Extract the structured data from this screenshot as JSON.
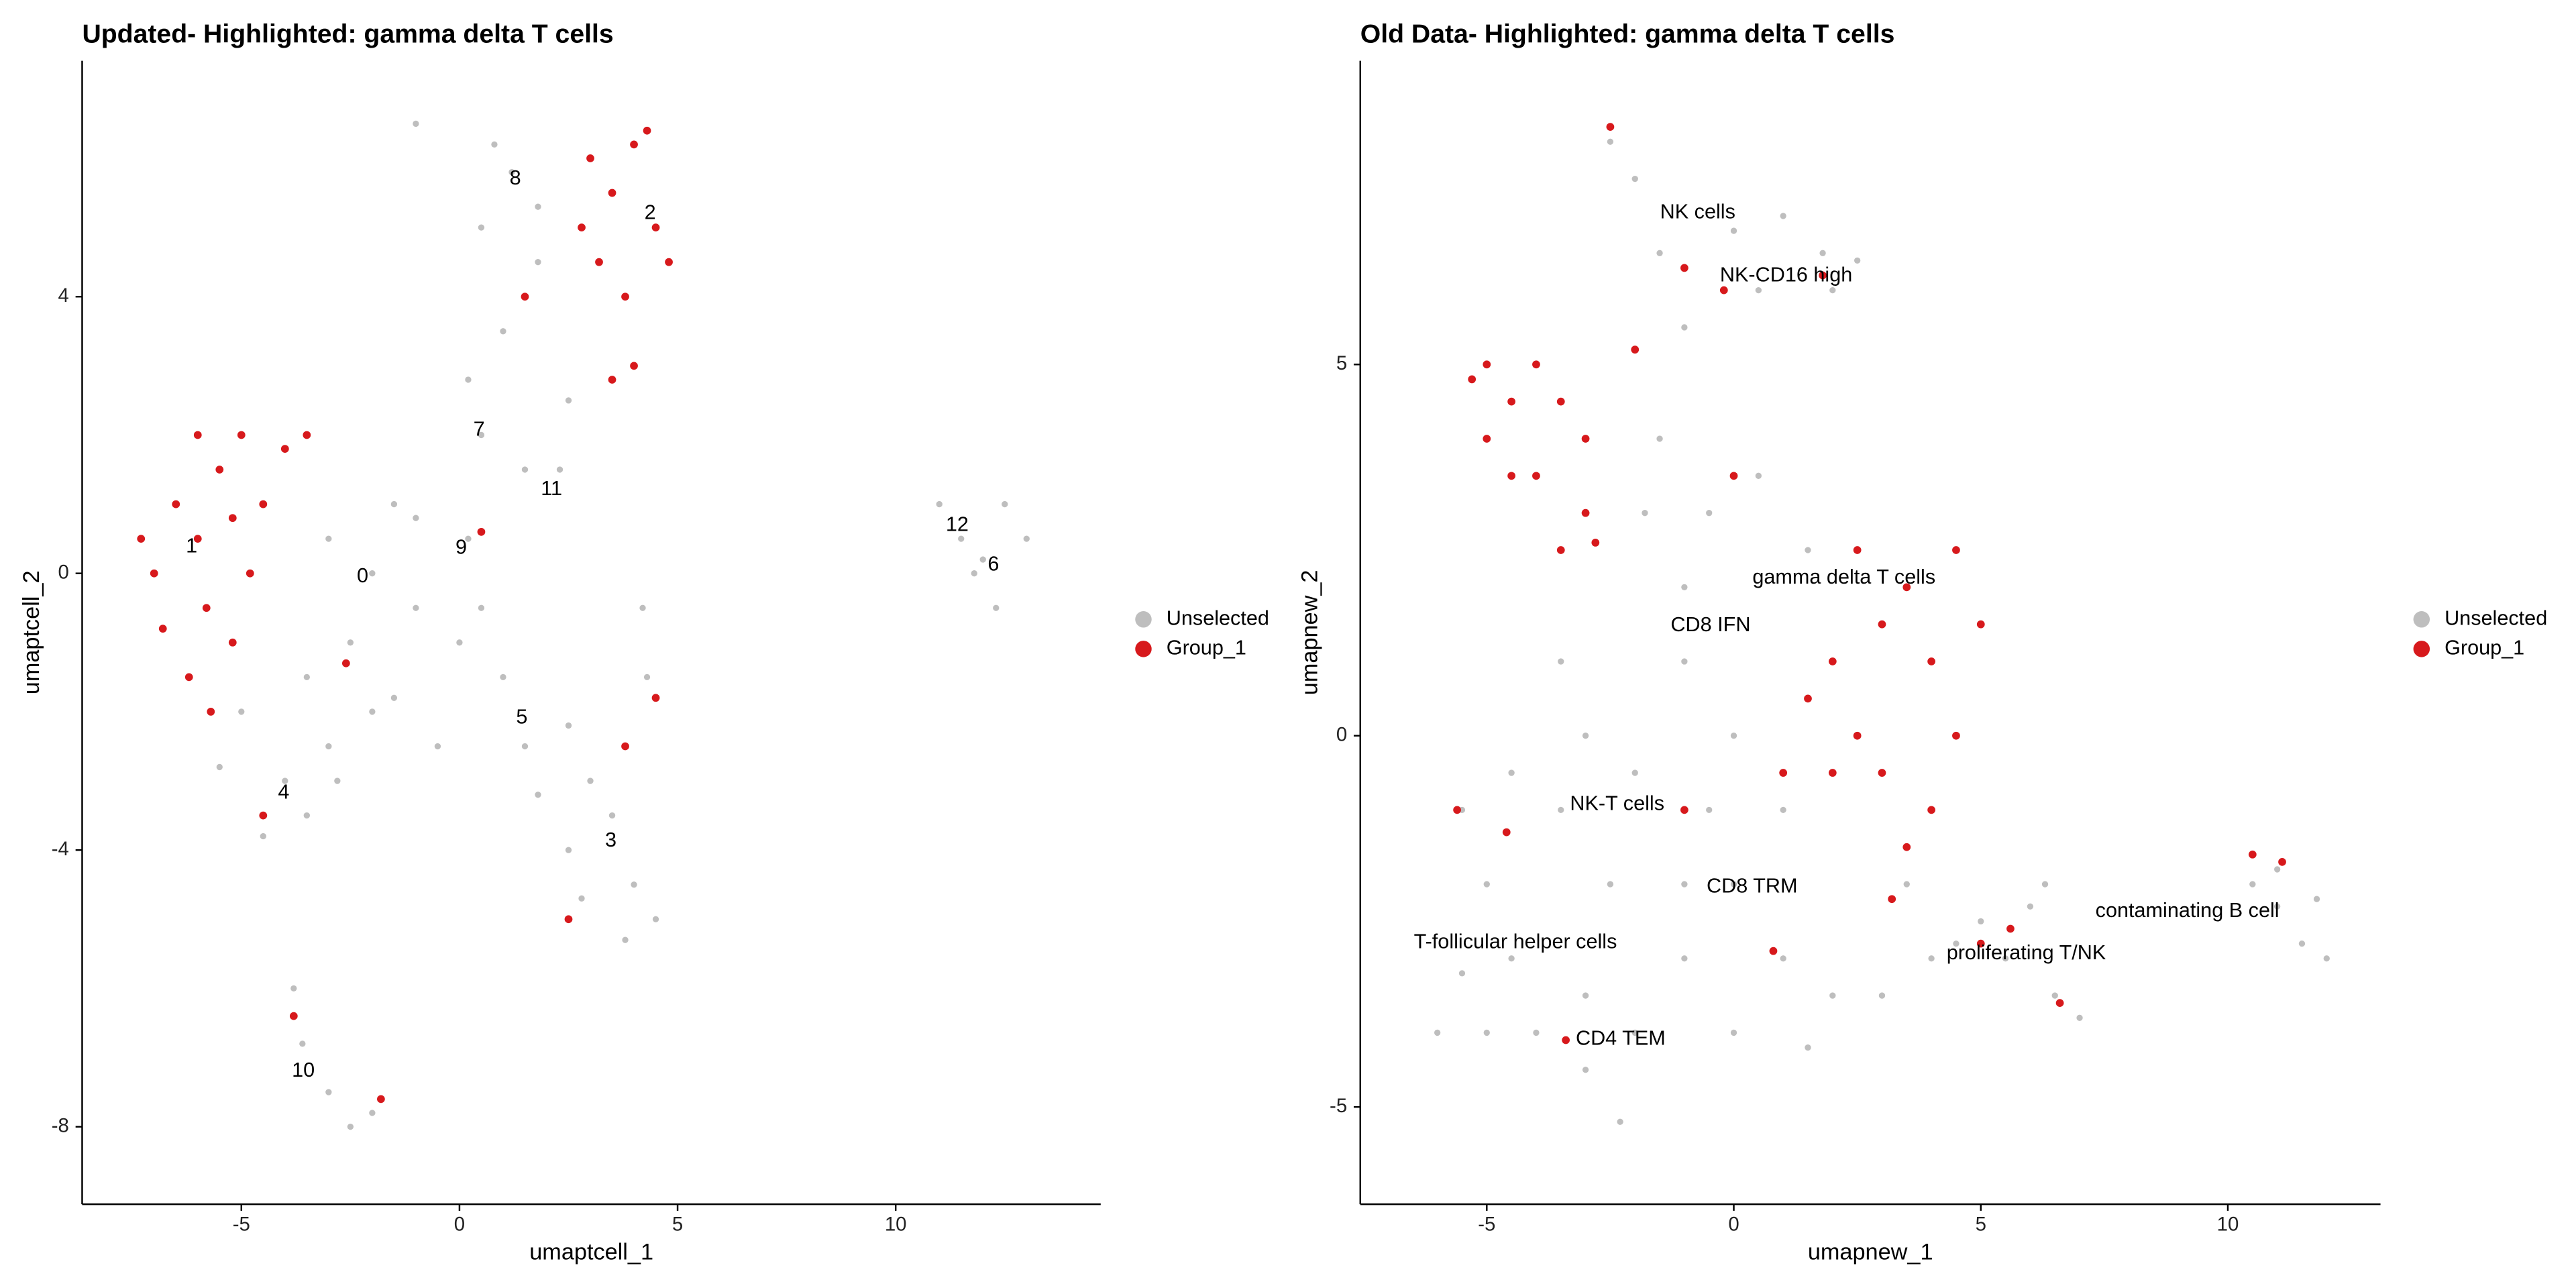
{
  "chart_data": [
    {
      "type": "scatter",
      "title": "Updated- Highlighted: gamma delta T cells",
      "xlabel": "umaptcell_1",
      "ylabel": "umaptcell_2",
      "xlim": [
        -8.65,
        14.7
      ],
      "ylim": [
        -9.12,
        7.41
      ],
      "xticks": [
        -5,
        0,
        5,
        10
      ],
      "yticks": [
        -8,
        -4,
        0,
        4
      ],
      "series": [
        {
          "name": "Unselected",
          "color": "#bebebe",
          "x": [
            -3,
            -2,
            -1,
            -2.5,
            -1.5,
            -3.5,
            -1,
            0,
            -2,
            -3,
            -4,
            -4.5,
            -3.5,
            -2.8,
            0.5,
            1,
            1.5,
            2.5,
            3,
            3.5,
            4,
            4.5,
            3.8,
            2.8,
            2.5,
            4.3,
            4.2,
            0.5,
            0.2,
            1.5,
            2.3,
            2.5,
            1,
            0.5,
            1.2,
            0.8,
            1.8,
            -1,
            1.8,
            -3.8,
            -3.6,
            -3,
            -2.5,
            -2,
            11,
            11.5,
            12,
            12.5,
            13,
            12.3,
            11.8,
            -5,
            -5.5,
            0.2,
            -0.5,
            1.8,
            -1.5
          ],
          "values": [
            0.5,
            0,
            -0.5,
            -1,
            1,
            -1.5,
            0.8,
            -1,
            -2,
            -2.5,
            -3,
            -3.8,
            -3.5,
            -3,
            -0.5,
            -1.5,
            -2.5,
            -2.2,
            -3,
            -3.5,
            -4.5,
            -5,
            -5.3,
            -4.7,
            -4,
            -1.5,
            -0.5,
            2,
            2.8,
            1.5,
            1.5,
            2.5,
            3.5,
            5,
            5.8,
            6.2,
            5.3,
            6.5,
            4.5,
            -6,
            -6.8,
            -7.5,
            -8,
            -7.8,
            1,
            0.5,
            0.2,
            1,
            0.5,
            -0.5,
            0,
            -2,
            -2.8,
            0.5,
            -2.5,
            -3.2,
            -1.8
          ]
        },
        {
          "name": "Group_1",
          "color": "#d7191c",
          "x": [
            -7,
            -6.5,
            -6,
            -5.5,
            -5,
            -6.8,
            -6.2,
            -5.8,
            -4.5,
            -4.8,
            -5.2,
            -6,
            -4,
            -7.3,
            -5.7,
            -3.5,
            -5.2,
            3,
            3.5,
            4,
            4.5,
            3.2,
            3.8,
            4,
            3.5,
            4.8,
            4.3,
            2.8,
            -4.5,
            -3.8,
            -1.8,
            1.5,
            2.5,
            4.5,
            0.5,
            -2.6,
            3.8
          ],
          "values": [
            0,
            1,
            0.5,
            1.5,
            2,
            -0.8,
            -1.5,
            -0.5,
            1,
            0,
            -1,
            2,
            1.8,
            0.5,
            -2,
            2,
            0.8,
            6,
            5.5,
            6.2,
            5,
            4.5,
            4,
            3,
            2.8,
            4.5,
            6.4,
            5,
            -3.5,
            -6.4,
            -7.6,
            4,
            -5,
            -1.8,
            0.6,
            -1.3,
            -2.5
          ]
        }
      ],
      "annotations": [
        {
          "text": "8",
          "x": 1.28,
          "y": 5.7
        },
        {
          "text": "2",
          "x": 4.37,
          "y": 5.2
        },
        {
          "text": "7",
          "x": 0.45,
          "y": 2.07
        },
        {
          "text": "11",
          "x": 2.11,
          "y": 1.21
        },
        {
          "text": "1",
          "x": -6.14,
          "y": 0.38
        },
        {
          "text": "0",
          "x": -2.22,
          "y": -0.05
        },
        {
          "text": "9",
          "x": 0.04,
          "y": 0.36
        },
        {
          "text": "12",
          "x": 11.41,
          "y": 0.69
        },
        {
          "text": "6",
          "x": 12.24,
          "y": 0.12
        },
        {
          "text": "5",
          "x": 1.43,
          "y": -2.09
        },
        {
          "text": "4",
          "x": -4.03,
          "y": -3.18
        },
        {
          "text": "3",
          "x": 3.47,
          "y": -3.87
        },
        {
          "text": "10",
          "x": -3.58,
          "y": -7.2
        }
      ]
    },
    {
      "type": "scatter",
      "title": "Old Data- Highlighted: gamma delta T cells",
      "xlabel": "umapnew_1",
      "ylabel": "umapnew_2",
      "xlim": [
        -7.56,
        13.09
      ],
      "ylim": [
        -6.31,
        9.09
      ],
      "xticks": [
        -5,
        0,
        5,
        10
      ],
      "yticks": [
        -5,
        0,
        5
      ],
      "series": [
        {
          "name": "Unselected",
          "color": "#bebebe",
          "x": [
            -1,
            0,
            1,
            -2,
            0,
            1,
            2,
            3,
            -1,
            -2,
            -3,
            -4,
            -5,
            -6,
            -5.5,
            -4.5,
            -3,
            -2.3,
            0,
            1.5,
            -1,
            -2.5,
            -3.5,
            -4.5,
            -5.5,
            -5,
            -3,
            -3.5,
            -1,
            -0.5,
            0.5,
            -1.5,
            -1,
            -1.5,
            -2,
            -2.5,
            0,
            1,
            1.8,
            2,
            2.5,
            0.5,
            1.5,
            -1.8,
            -0.5,
            3.5,
            4,
            4.5,
            5.5,
            6.5,
            7,
            6,
            5,
            6.3,
            10.5,
            11,
            11.5,
            12,
            11.8,
            11
          ],
          "values": [
            1,
            0,
            -1,
            -0.5,
            -2,
            -3,
            -3.5,
            -3.5,
            -3,
            -4,
            -4.5,
            -4,
            -4,
            -4,
            -3.2,
            -3,
            -3.5,
            -5.2,
            -4,
            -4.2,
            -2,
            -2,
            -1,
            -0.5,
            -1,
            -2,
            0,
            1,
            2,
            3,
            3.5,
            4,
            5.5,
            6.5,
            7.5,
            8,
            6.8,
            7,
            6.5,
            6,
            6.4,
            6,
            2.5,
            3,
            -1,
            -2,
            -3,
            -2.8,
            -3,
            -3.5,
            -3.8,
            -2.3,
            -2.5,
            -2,
            -2,
            -2.3,
            -2.8,
            -3,
            -2.2,
            -1.8
          ]
        },
        {
          "name": "Group_1",
          "color": "#d7191c",
          "x": [
            -5,
            -4.5,
            -4,
            -3.5,
            -4,
            -3,
            -3.5,
            -5,
            -4.5,
            -3,
            -2.8,
            -5.3,
            2,
            2.5,
            3,
            3.5,
            4,
            4.5,
            3,
            2,
            4,
            3.5,
            4.5,
            1.5,
            5,
            1,
            2.5,
            -2.5,
            -1,
            -0.2,
            1.8,
            -2,
            -5.6,
            -4.6,
            0,
            -1,
            -3.4,
            5,
            5.6,
            6.6,
            10.5,
            11.1,
            0.8,
            3.2
          ],
          "values": [
            5,
            4.5,
            5,
            4.5,
            3.5,
            3,
            2.5,
            4,
            3.5,
            4,
            2.6,
            4.8,
            1,
            0,
            1.5,
            2,
            1,
            0,
            -0.5,
            -0.5,
            -1,
            -1.5,
            2.5,
            0.5,
            1.5,
            -0.5,
            2.5,
            8.2,
            6.3,
            6,
            6.2,
            5.2,
            -1,
            -1.3,
            3.5,
            -1,
            -4.1,
            -2.8,
            -2.6,
            -3.6,
            -1.6,
            -1.7,
            -2.9,
            -2.2
          ]
        }
      ],
      "annotations": [
        {
          "text": "NK cells",
          "x": -0.73,
          "y": 7.04
        },
        {
          "text": "NK-CD16 high",
          "x": 1.06,
          "y": 6.19
        },
        {
          "text": "gamma delta T cells",
          "x": 2.23,
          "y": 2.12
        },
        {
          "text": "CD8 IFN",
          "x": -0.47,
          "y": 1.48
        },
        {
          "text": "NK-T cells",
          "x": -2.36,
          "y": -0.93
        },
        {
          "text": "CD8 TRM",
          "x": 0.37,
          "y": -2.04
        },
        {
          "text": "contaminating  B cell",
          "x": 9.18,
          "y": -2.37
        },
        {
          "text": "proliferating T/NK",
          "x": 5.92,
          "y": -2.94
        },
        {
          "text": "T-follicular helper cells",
          "x": -4.42,
          "y": -2.79
        },
        {
          "text": "CD4 TEM",
          "x": -2.29,
          "y": -4.09
        }
      ]
    }
  ]
}
